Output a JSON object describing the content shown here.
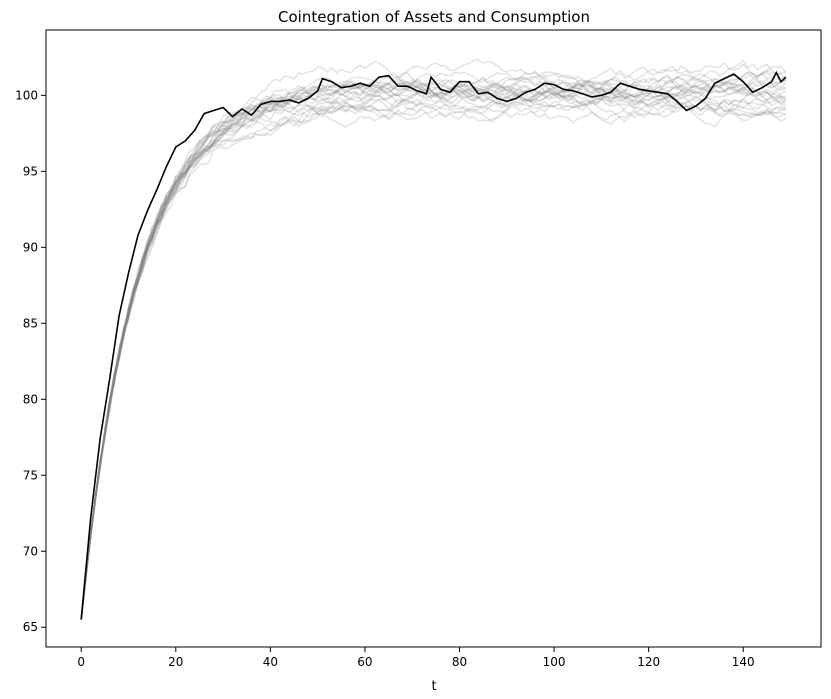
{
  "chart_data": {
    "type": "line",
    "title": "Cointegration of Assets and Consumption",
    "xlabel": "t",
    "ylabel": "",
    "xlim": [
      -7.45,
      156.45
    ],
    "ylim": [
      63.7,
      104.3
    ],
    "xticks": [
      0,
      20,
      40,
      60,
      80,
      100,
      120,
      140
    ],
    "yticks": [
      65,
      70,
      75,
      80,
      85,
      90,
      95,
      100
    ],
    "grid": false,
    "legend": "none",
    "n_points": 150,
    "start_value": 65.5,
    "steady_value": 100,
    "convergence_rate": 0.095,
    "background_series": {
      "count": 24,
      "color": "#808080",
      "opacity": 0.22,
      "seeds": [
        3,
        7,
        11,
        13,
        17,
        19,
        23,
        29,
        31,
        37,
        41,
        43,
        47,
        53,
        59,
        61,
        67,
        71,
        73,
        79,
        83,
        89,
        97,
        101
      ]
    },
    "highlight_series": {
      "color": "#000000",
      "points": [
        [
          0,
          65.5
        ],
        [
          2,
          72.2
        ],
        [
          4,
          77.4
        ],
        [
          6,
          81.3
        ],
        [
          8,
          85.5
        ],
        [
          10,
          88.3
        ],
        [
          12,
          90.8
        ],
        [
          14,
          92.4
        ],
        [
          16,
          93.8
        ],
        [
          18,
          95.3
        ],
        [
          20,
          96.6
        ],
        [
          22,
          97.0
        ],
        [
          24,
          97.7
        ],
        [
          26,
          98.8
        ],
        [
          28,
          99.0
        ],
        [
          30,
          99.2
        ],
        [
          32,
          98.6
        ],
        [
          34,
          99.1
        ],
        [
          36,
          98.7
        ],
        [
          38,
          99.4
        ],
        [
          40,
          99.6
        ],
        [
          42,
          99.6
        ],
        [
          44,
          99.7
        ],
        [
          46,
          99.5
        ],
        [
          48,
          99.8
        ],
        [
          50,
          100.3
        ],
        [
          51,
          101.1
        ],
        [
          53,
          100.9
        ],
        [
          55,
          100.5
        ],
        [
          57,
          100.6
        ],
        [
          59,
          100.8
        ],
        [
          61,
          100.6
        ],
        [
          63,
          101.2
        ],
        [
          65,
          101.3
        ],
        [
          67,
          100.6
        ],
        [
          69,
          100.6
        ],
        [
          71,
          100.3
        ],
        [
          73,
          100.1
        ],
        [
          74,
          101.2
        ],
        [
          76,
          100.4
        ],
        [
          78,
          100.2
        ],
        [
          80,
          100.9
        ],
        [
          82,
          100.9
        ],
        [
          84,
          100.1
        ],
        [
          86,
          100.2
        ],
        [
          88,
          99.8
        ],
        [
          90,
          99.6
        ],
        [
          92,
          99.8
        ],
        [
          94,
          100.2
        ],
        [
          96,
          100.4
        ],
        [
          98,
          100.8
        ],
        [
          100,
          100.7
        ],
        [
          102,
          100.4
        ],
        [
          104,
          100.3
        ],
        [
          106,
          100.1
        ],
        [
          108,
          99.9
        ],
        [
          110,
          100.0
        ],
        [
          112,
          100.2
        ],
        [
          114,
          100.8
        ],
        [
          116,
          100.6
        ],
        [
          118,
          100.4
        ],
        [
          120,
          100.3
        ],
        [
          122,
          100.2
        ],
        [
          124,
          100.1
        ],
        [
          126,
          99.6
        ],
        [
          128,
          99.0
        ],
        [
          130,
          99.3
        ],
        [
          132,
          99.8
        ],
        [
          134,
          100.8
        ],
        [
          136,
          101.1
        ],
        [
          138,
          101.4
        ],
        [
          140,
          100.9
        ],
        [
          142,
          100.2
        ],
        [
          144,
          100.5
        ],
        [
          146,
          100.9
        ],
        [
          147,
          101.5
        ],
        [
          148,
          100.9
        ],
        [
          149,
          101.2
        ]
      ]
    }
  }
}
